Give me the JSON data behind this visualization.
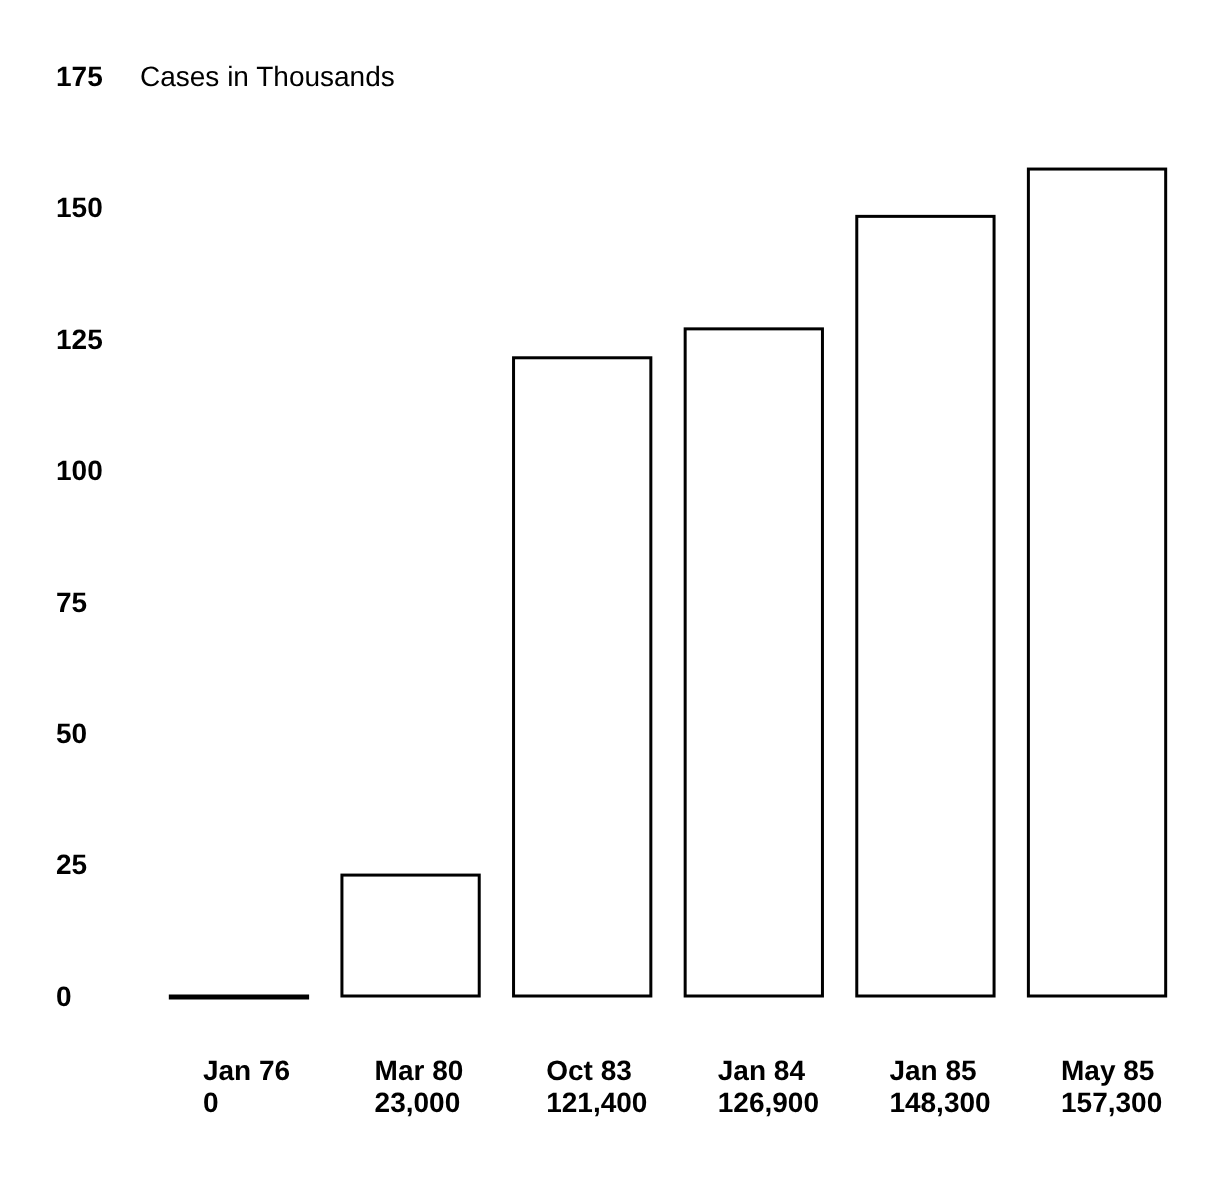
{
  "chart_data": {
    "type": "bar",
    "ylabel": "Cases in Thousands",
    "categories": [
      "Jan 76\n0",
      "Mar 80\n23,000",
      "Oct 83\n121,400",
      "Jan 84\n126,900",
      "Jan 85\n148,300",
      "May 85\n157,300"
    ],
    "values": [
      0,
      23,
      121.4,
      126.9,
      148.3,
      157.3
    ],
    "color": "#ffffff",
    "ylim": [
      0,
      175
    ],
    "yticks": [
      0,
      25,
      50,
      75,
      100,
      125,
      150,
      175
    ]
  }
}
